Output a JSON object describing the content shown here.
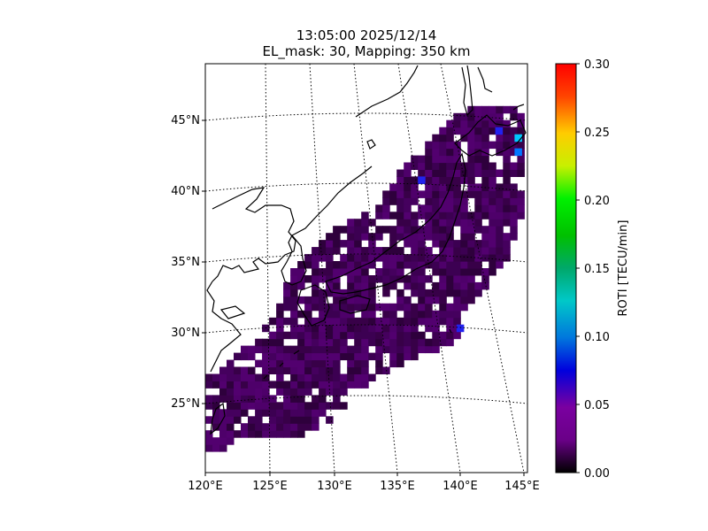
{
  "title": {
    "line1": "13:05:00 2025/12/14",
    "line2": "EL_mask: 30, Mapping: 350 km"
  },
  "map": {
    "lon_range": [
      120,
      145
    ],
    "lat_range": [
      20,
      49
    ],
    "lon_ticks": [
      "120°E",
      "125°E",
      "130°E",
      "135°E",
      "140°E",
      "145°E"
    ],
    "lat_ticks": [
      "25°N",
      "30°N",
      "35°N",
      "40°N",
      "45°N"
    ],
    "gridlines": "dotted"
  },
  "colorbar": {
    "label": "ROTI [TECU/min]",
    "range": [
      0.0,
      0.3
    ],
    "ticks": [
      "0.00",
      "0.05",
      "0.10",
      "0.15",
      "0.20",
      "0.25",
      "0.30"
    ],
    "colormap": "nipy_spectral-like"
  },
  "roti_cells": {
    "typical_value": 0.04,
    "notable": [
      {
        "lon": 144,
        "lat": 43.5,
        "value": 0.1
      },
      {
        "lon": 144,
        "lat": 42.5,
        "value": 0.09
      },
      {
        "lon": 142.5,
        "lat": 44,
        "value": 0.06
      },
      {
        "lon": 136.5,
        "lat": 40.5,
        "value": 0.07
      },
      {
        "lon": 139.5,
        "lat": 30,
        "value": 0.06
      }
    ]
  }
}
